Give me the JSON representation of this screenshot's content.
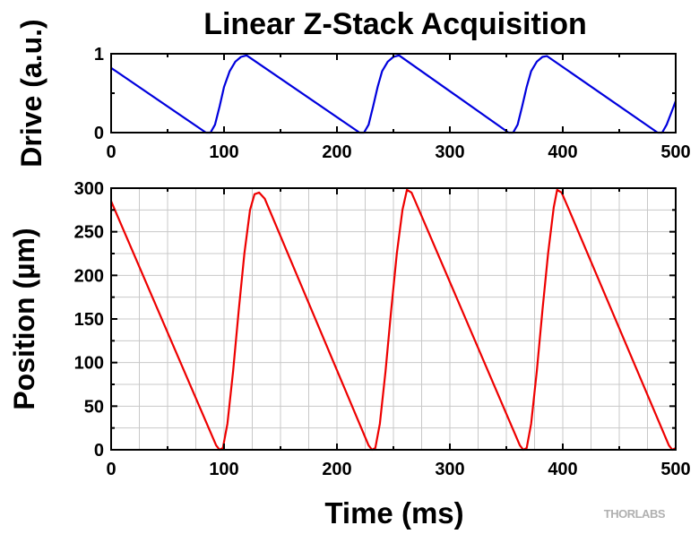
{
  "title": "Linear Z-Stack Acquisition",
  "watermark": "THORLABS",
  "chart_data": [
    {
      "type": "line",
      "ylabel": "Drive (a.u.)",
      "xlabel": "",
      "xlim": [
        0,
        500
      ],
      "ylim": [
        0,
        1
      ],
      "xticks": [
        0,
        100,
        200,
        300,
        400,
        500
      ],
      "yticks": [
        0,
        1
      ],
      "grid": false,
      "color": "#0000dd",
      "series": [
        {
          "x": [
            0,
            84,
            88,
            92,
            96,
            100,
            105,
            110,
            115,
            120,
            220,
            224,
            228,
            232,
            236,
            240,
            245,
            250,
            255,
            352,
            356,
            360,
            364,
            368,
            372,
            377,
            382,
            386,
            484,
            488,
            492,
            496,
            500
          ],
          "y": [
            0.82,
            0,
            0,
            0.1,
            0.33,
            0.58,
            0.78,
            0.9,
            0.96,
            0.98,
            0,
            0,
            0.1,
            0.33,
            0.58,
            0.78,
            0.9,
            0.96,
            0.98,
            0,
            0,
            0.1,
            0.33,
            0.58,
            0.78,
            0.9,
            0.96,
            0.97,
            0,
            0,
            0.1,
            0.25,
            0.4
          ]
        }
      ]
    },
    {
      "type": "line",
      "ylabel": "Position (µm)",
      "xlabel": "Time (ms)",
      "xlim": [
        0,
        500
      ],
      "ylim": [
        0,
        300
      ],
      "xticks": [
        0,
        100,
        200,
        300,
        400,
        500
      ],
      "yticks": [
        0,
        50,
        100,
        150,
        200,
        250,
        300
      ],
      "grid": true,
      "color": "#ee0000",
      "series": [
        {
          "x": [
            0,
            93,
            96,
            99,
            103,
            108,
            113,
            118,
            123,
            127,
            131,
            136,
            228,
            231,
            234,
            238,
            243,
            248,
            253,
            258,
            262,
            266,
            270,
            362,
            365,
            368,
            372,
            377,
            382,
            387,
            392,
            395,
            399,
            404,
            494,
            497,
            500
          ],
          "y": [
            285,
            5,
            0,
            2,
            30,
            90,
            160,
            225,
            275,
            293,
            295,
            288,
            5,
            0,
            2,
            30,
            90,
            160,
            225,
            275,
            298,
            295,
            283,
            5,
            0,
            2,
            30,
            90,
            160,
            225,
            278,
            298,
            295,
            280,
            5,
            0,
            2
          ]
        }
      ]
    }
  ]
}
